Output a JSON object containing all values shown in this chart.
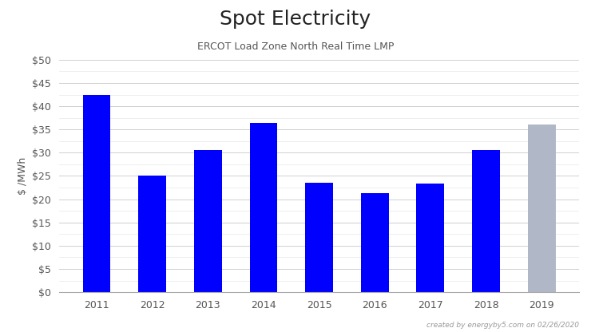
{
  "categories": [
    "2011",
    "2012",
    "2013",
    "2014",
    "2015",
    "2016",
    "2017",
    "2018",
    "2019"
  ],
  "values": [
    42.5,
    25.0,
    30.5,
    36.5,
    23.5,
    21.3,
    23.3,
    30.5,
    36.0
  ],
  "bar_colors": [
    "#0000ff",
    "#0000ff",
    "#0000ff",
    "#0000ff",
    "#0000ff",
    "#0000ff",
    "#0000ff",
    "#0000ff",
    "#b0b8c8"
  ],
  "title": "Spot Electricity",
  "subtitle": "ERCOT Load Zone North Real Time LMP",
  "ylabel": "$ /MWh",
  "ylim": [
    0,
    50
  ],
  "yticks": [
    0,
    5,
    10,
    15,
    20,
    25,
    30,
    35,
    40,
    45,
    50
  ],
  "ytick_labels": [
    "$0",
    "$5",
    "$10",
    "$15",
    "$20",
    "$25",
    "$30",
    "$35",
    "$40",
    "$45",
    "$50"
  ],
  "footnote": "created by energyby5.com on 02/26/2020",
  "background_color": "#ffffff",
  "major_grid_color": "#d0d0d0",
  "minor_grid_color": "#e8e8e8",
  "title_fontsize": 18,
  "subtitle_fontsize": 9,
  "ylabel_fontsize": 9,
  "tick_fontsize": 9,
  "footnote_fontsize": 6.5,
  "bar_width": 0.5
}
